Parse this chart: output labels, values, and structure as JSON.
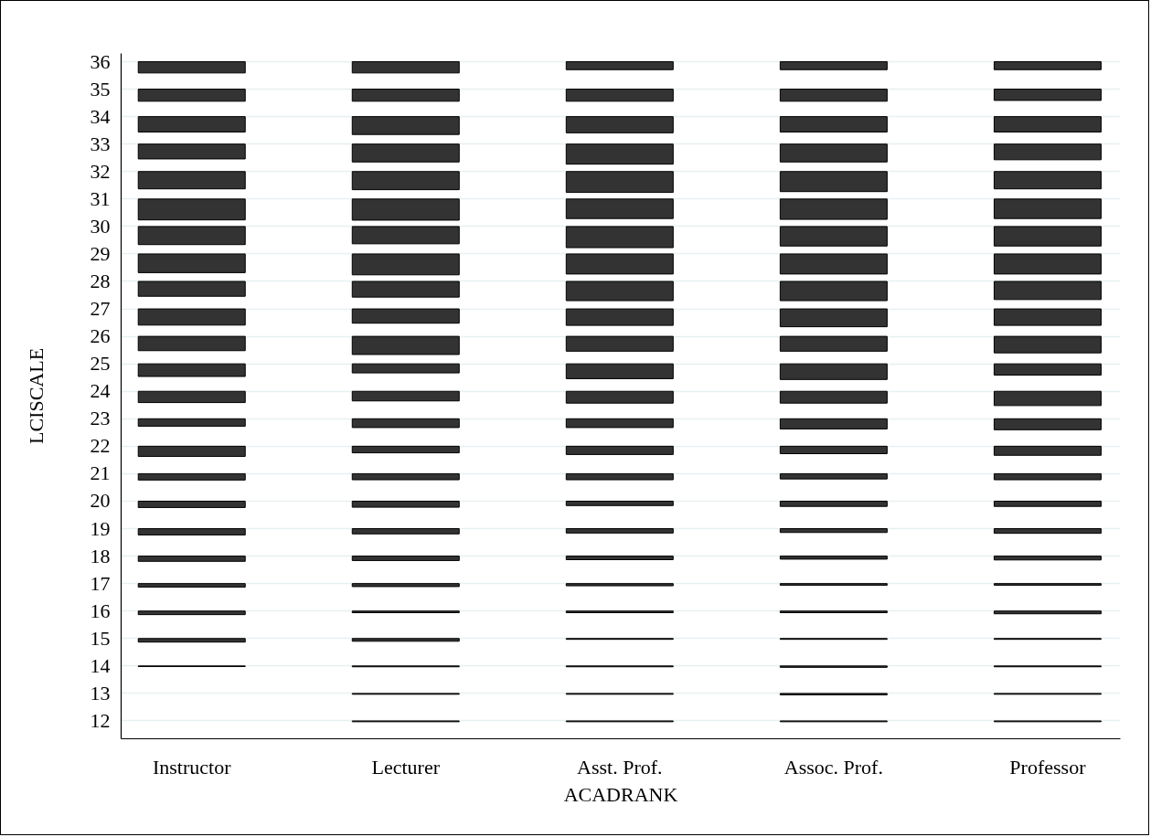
{
  "chart_data": {
    "type": "bar",
    "xlabel": "ACADRANK",
    "ylabel": "LCISCALE",
    "categories": [
      "Instructor",
      "Lecturer",
      "Asst. Prof.",
      "Assoc. Prof.",
      "Professor"
    ],
    "series": [
      {
        "color": "#333333",
        "values": [
          null,
          0.03,
          0.03,
          0.03,
          0.03
        ],
        "base": [
          null,
          11.97,
          11.97,
          11.97,
          11.97
        ]
      },
      {
        "color": "#333333",
        "values": [
          null,
          0.03,
          0.03,
          0.05,
          0.03
        ],
        "base": [
          null,
          12.97,
          12.97,
          12.95,
          12.97
        ]
      },
      {
        "color": "#333333",
        "values": [
          0.02,
          0.03,
          0.03,
          0.05,
          0.03
        ],
        "base": [
          13.98,
          13.97,
          13.97,
          13.95,
          13.97
        ]
      },
      {
        "color": "#333333",
        "values": [
          0.13,
          0.1,
          0.03,
          0.03,
          0.03
        ],
        "base": [
          14.87,
          14.9,
          14.97,
          14.97,
          14.97
        ]
      },
      {
        "color": "#333333",
        "values": [
          0.13,
          0.06,
          0.06,
          0.06,
          0.1
        ],
        "base": [
          15.87,
          15.94,
          15.94,
          15.94,
          15.9
        ]
      },
      {
        "color": "#333333",
        "values": [
          0.13,
          0.11,
          0.08,
          0.06,
          0.06
        ],
        "base": [
          16.87,
          16.89,
          16.92,
          16.94,
          16.94
        ]
      },
      {
        "color": "#333333",
        "values": [
          0.19,
          0.16,
          0.13,
          0.11,
          0.14
        ],
        "base": [
          17.81,
          17.84,
          17.87,
          17.89,
          17.86
        ]
      },
      {
        "color": "#333333",
        "values": [
          0.23,
          0.19,
          0.16,
          0.14,
          0.17
        ],
        "base": [
          18.77,
          18.81,
          18.84,
          18.86,
          18.83
        ]
      },
      {
        "color": "#333333",
        "values": [
          0.23,
          0.22,
          0.16,
          0.19,
          0.19
        ],
        "base": [
          19.77,
          19.78,
          19.84,
          19.81,
          19.81
        ]
      },
      {
        "color": "#333333",
        "values": [
          0.23,
          0.22,
          0.22,
          0.19,
          0.22
        ],
        "base": [
          20.77,
          20.78,
          20.78,
          20.81,
          20.78
        ]
      },
      {
        "color": "#333333",
        "values": [
          0.37,
          0.24,
          0.3,
          0.27,
          0.33
        ],
        "base": [
          21.63,
          21.76,
          21.7,
          21.73,
          21.67
        ]
      },
      {
        "color": "#333333",
        "values": [
          0.27,
          0.32,
          0.32,
          0.37,
          0.4
        ],
        "base": [
          22.73,
          22.68,
          22.68,
          22.63,
          22.6
        ]
      },
      {
        "color": "#333333",
        "values": [
          0.41,
          0.35,
          0.43,
          0.43,
          0.52
        ],
        "base": [
          23.59,
          23.65,
          23.57,
          23.57,
          23.48
        ]
      },
      {
        "color": "#333333",
        "values": [
          0.46,
          0.33,
          0.54,
          0.57,
          0.41
        ],
        "base": [
          24.54,
          24.67,
          24.46,
          24.43,
          24.59
        ]
      },
      {
        "color": "#333333",
        "values": [
          0.52,
          0.66,
          0.54,
          0.54,
          0.6
        ],
        "base": [
          25.48,
          25.34,
          25.46,
          25.46,
          25.4
        ]
      },
      {
        "color": "#333333",
        "values": [
          0.59,
          0.52,
          0.6,
          0.65,
          0.6
        ],
        "base": [
          26.41,
          26.48,
          26.4,
          26.35,
          26.4
        ]
      },
      {
        "color": "#333333",
        "values": [
          0.54,
          0.57,
          0.7,
          0.7,
          0.66
        ],
        "base": [
          27.46,
          27.43,
          27.3,
          27.3,
          27.34
        ]
      },
      {
        "color": "#333333",
        "values": [
          0.68,
          0.76,
          0.73,
          0.73,
          0.73
        ],
        "base": [
          28.32,
          28.24,
          28.27,
          28.27,
          28.27
        ]
      },
      {
        "color": "#333333",
        "values": [
          0.66,
          0.63,
          0.77,
          0.71,
          0.71
        ],
        "base": [
          29.34,
          29.37,
          29.23,
          29.29,
          29.29
        ]
      },
      {
        "color": "#333333",
        "values": [
          0.76,
          0.77,
          0.71,
          0.74,
          0.71
        ],
        "base": [
          30.24,
          30.23,
          30.29,
          30.26,
          30.29
        ]
      },
      {
        "color": "#333333",
        "values": [
          0.63,
          0.66,
          0.76,
          0.73,
          0.63
        ],
        "base": [
          31.37,
          31.34,
          31.24,
          31.27,
          31.37
        ]
      },
      {
        "color": "#333333",
        "values": [
          0.54,
          0.65,
          0.73,
          0.65,
          0.57
        ],
        "base": [
          32.46,
          32.35,
          32.27,
          32.35,
          32.43
        ]
      },
      {
        "color": "#333333",
        "values": [
          0.56,
          0.65,
          0.59,
          0.56,
          0.56
        ],
        "base": [
          33.44,
          33.35,
          33.41,
          33.44,
          33.44
        ]
      },
      {
        "color": "#333333",
        "values": [
          0.44,
          0.44,
          0.44,
          0.44,
          0.41
        ],
        "base": [
          34.56,
          34.56,
          34.56,
          34.56,
          34.59
        ]
      },
      {
        "color": "#333333",
        "values": [
          0.41,
          0.41,
          0.29,
          0.29,
          0.29
        ],
        "base": [
          35.59,
          35.59,
          35.71,
          35.71,
          35.71
        ]
      }
    ],
    "ylim": [
      11.35,
      36.3
    ],
    "yticks": [
      12,
      13,
      14,
      15,
      16,
      17,
      18,
      19,
      20,
      21,
      22,
      23,
      24,
      25,
      26,
      27,
      28,
      29,
      30,
      31,
      32,
      33,
      34,
      35,
      36
    ],
    "grid": "y"
  }
}
